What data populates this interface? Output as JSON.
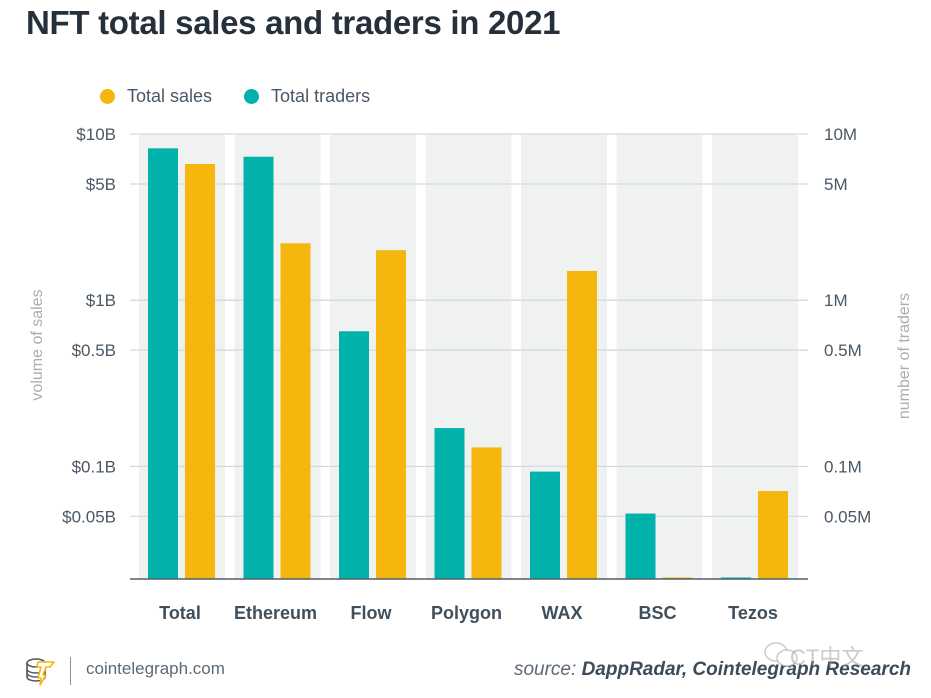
{
  "title": "NFT total sales and traders in 2021",
  "legend": [
    {
      "label": "Total sales",
      "color": "#f5b60d"
    },
    {
      "label": "Total traders",
      "color": "#00b2a9"
    }
  ],
  "footer": {
    "site": "cointelegraph.com",
    "source_prefix": "source: ",
    "source_names": "DappRadar, Cointelegraph Research",
    "watermark": "CT中文"
  },
  "chart_data": {
    "type": "bar",
    "title": "NFT total sales and traders in 2021",
    "categories": [
      "Total",
      "Ethereum",
      "Flow",
      "Polygon",
      "WAX",
      "BSC",
      "Tezos"
    ],
    "series": [
      {
        "name": "Total traders",
        "axis": "right",
        "unit": "M",
        "color": "#00b2a9",
        "values": [
          8.2,
          7.3,
          0.65,
          0.17,
          0.093,
          0.052,
          0.021
        ]
      },
      {
        "name": "Total sales",
        "axis": "left",
        "unit": "$B",
        "color": "#f5b60d",
        "values": [
          6.6,
          2.2,
          2.0,
          0.13,
          1.5,
          0.021,
          0.071
        ]
      }
    ],
    "scale": "log",
    "ylim": [
      0.021,
      10
    ],
    "left_axis": {
      "label": "volume of sales",
      "ticks": [
        10,
        5,
        1,
        0.5,
        0.1,
        0.05
      ],
      "tick_labels": [
        "$10B",
        "$5B",
        "$1B",
        "$0.5B",
        "$0.1B",
        "$0.05B"
      ]
    },
    "right_axis": {
      "label": "number of traders",
      "ticks": [
        10,
        5,
        1,
        0.5,
        0.1,
        0.05
      ],
      "tick_labels": [
        "10M",
        "5M",
        "1M",
        "0.5M",
        "0.1M",
        "0.05M"
      ]
    },
    "grid": true,
    "legend_position": "top-left"
  },
  "colors": {
    "band": "#f0f2f2",
    "grid": "#d6dadc",
    "axis": "#4f5f6b",
    "tick_text": "#4a5866",
    "category_text": "#3f4f5c",
    "axis_label": "#a8aeb3"
  }
}
